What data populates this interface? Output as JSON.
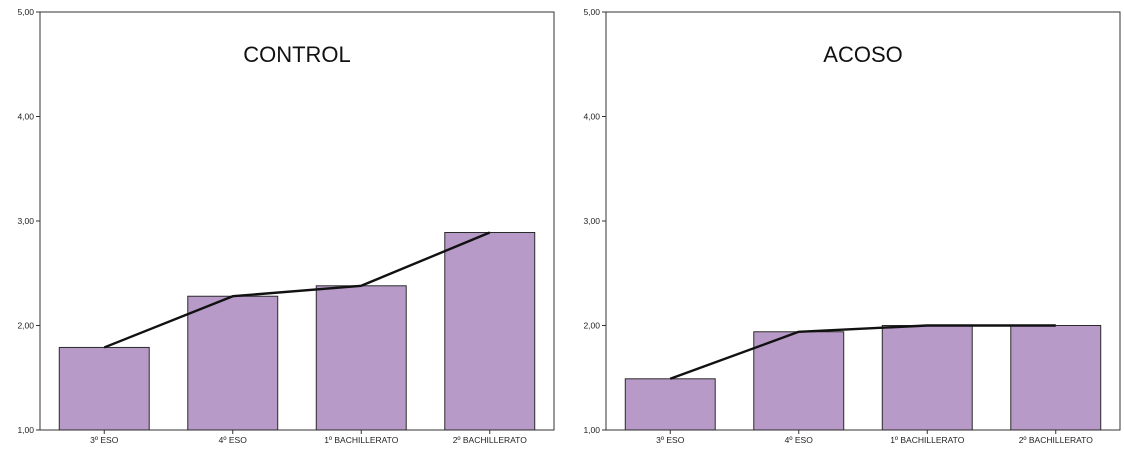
{
  "chart_data": [
    {
      "type": "bar",
      "title": "CONTROL",
      "categories": [
        "3º ESO",
        "4º ESO",
        "1º BACHILLERATO",
        "2º BACHILLERATO"
      ],
      "values": [
        1.79,
        2.28,
        2.38,
        2.89
      ],
      "line_values": [
        1.79,
        2.28,
        2.38,
        2.89
      ],
      "ylim": [
        1.0,
        5.0
      ],
      "yticks": [
        "1,00",
        "2,00",
        "3,00",
        "4,00",
        "5,00"
      ],
      "grid": false,
      "colors": {
        "bar": "#b79ac8",
        "bar_stroke": "#2b2b2b",
        "line": "#111111"
      }
    },
    {
      "type": "bar",
      "title": "ACOSO",
      "categories": [
        "3º ESO",
        "4º ESO",
        "1º BACHILLERATO",
        "2º BACHILLERATO"
      ],
      "values": [
        1.49,
        1.94,
        2.0,
        2.0
      ],
      "line_values": [
        1.49,
        1.94,
        2.0,
        2.0
      ],
      "ylim": [
        1.0,
        5.0
      ],
      "yticks": [
        "1,00",
        "2,00",
        "3,00",
        "4,00",
        "5,00"
      ],
      "grid": false,
      "colors": {
        "bar": "#b79ac8",
        "bar_stroke": "#2b2b2b",
        "line": "#111111"
      }
    }
  ]
}
